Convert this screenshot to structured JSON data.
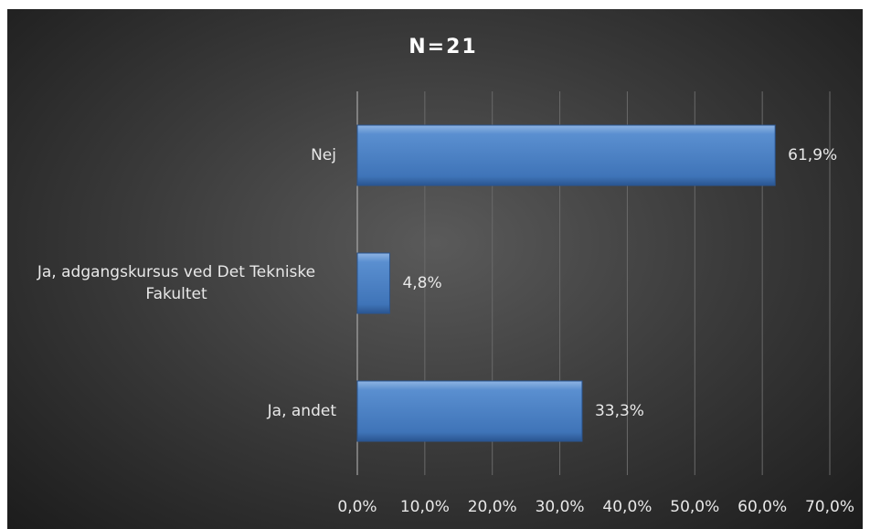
{
  "chart_data": {
    "type": "hbar",
    "title": "N=21",
    "categories": [
      "Nej",
      "Ja, adgangskursus ved Det Tekniske Fakultet",
      "Ja, andet"
    ],
    "values": [
      61.9,
      4.8,
      33.3
    ],
    "value_labels": [
      "61,9%",
      "4,8%",
      "33,3%"
    ],
    "color": "#4f81bd",
    "xlim": [
      0,
      70
    ],
    "xticks": [
      {
        "value": 0,
        "label": "0,0%"
      },
      {
        "value": 10,
        "label": "10,0%"
      },
      {
        "value": 20,
        "label": "20,0%"
      },
      {
        "value": 30,
        "label": "30,0%"
      },
      {
        "value": 40,
        "label": "40,0%"
      },
      {
        "value": 50,
        "label": "50,0%"
      },
      {
        "value": 60,
        "label": "60,0%"
      },
      {
        "value": 70,
        "label": "70,0%"
      }
    ],
    "grid": true
  }
}
